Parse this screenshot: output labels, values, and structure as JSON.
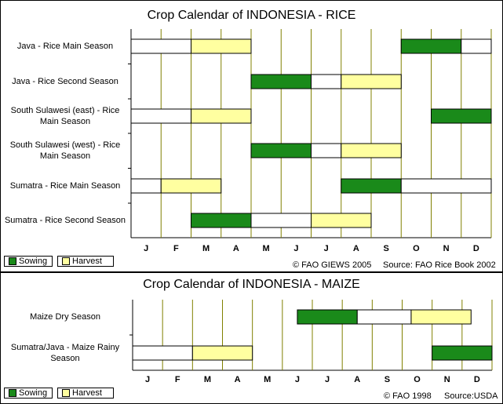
{
  "colors": {
    "sowing": "#1a8a1a",
    "harvest": "#ffffa0",
    "growing": "#ffffff",
    "gridline": "#808000"
  },
  "legend": {
    "sowing": "Sowing",
    "harvest": "Harvest"
  },
  "chart_data": [
    {
      "type": "table",
      "title": "Crop Calendar of INDONESIA - RICE",
      "months": [
        "J",
        "F",
        "M",
        "A",
        "M",
        "J",
        "J",
        "A",
        "S",
        "O",
        "N",
        "D"
      ],
      "source_left": "© FAO GIEWS 2005",
      "source_right": "Source: FAO Rice Book 2002",
      "rows": [
        {
          "label": "Java - Rice Main Season",
          "segments": [
            {
              "start": 0,
              "end": 2,
              "phase": "growing"
            },
            {
              "start": 2,
              "end": 4,
              "phase": "harvest"
            },
            {
              "start": 9,
              "end": 11,
              "phase": "sowing"
            },
            {
              "start": 11,
              "end": 12,
              "phase": "growing"
            }
          ]
        },
        {
          "label": "Java - Rice Second Season",
          "segments": [
            {
              "start": 4,
              "end": 6,
              "phase": "sowing"
            },
            {
              "start": 6,
              "end": 7,
              "phase": "growing"
            },
            {
              "start": 7,
              "end": 9,
              "phase": "harvest"
            }
          ]
        },
        {
          "label": "South Sulawesi (east) - Rice Main Season",
          "segments": [
            {
              "start": 0,
              "end": 2,
              "phase": "growing"
            },
            {
              "start": 2,
              "end": 4,
              "phase": "harvest"
            },
            {
              "start": 10,
              "end": 12,
              "phase": "sowing"
            }
          ]
        },
        {
          "label": "South Sulawesi (west) - Rice Main Season",
          "segments": [
            {
              "start": 4,
              "end": 6,
              "phase": "sowing"
            },
            {
              "start": 6,
              "end": 7,
              "phase": "growing"
            },
            {
              "start": 7,
              "end": 9,
              "phase": "harvest"
            }
          ]
        },
        {
          "label": "Sumatra - Rice Main Season",
          "segments": [
            {
              "start": 0,
              "end": 1,
              "phase": "growing"
            },
            {
              "start": 1,
              "end": 3,
              "phase": "harvest"
            },
            {
              "start": 7,
              "end": 9,
              "phase": "sowing"
            },
            {
              "start": 9,
              "end": 12,
              "phase": "growing"
            }
          ]
        },
        {
          "label": "Sumatra - Rice Second Season",
          "segments": [
            {
              "start": 2,
              "end": 4,
              "phase": "sowing"
            },
            {
              "start": 4,
              "end": 6,
              "phase": "growing"
            },
            {
              "start": 6,
              "end": 8,
              "phase": "harvest"
            }
          ]
        }
      ]
    },
    {
      "type": "table",
      "title": "Crop Calendar of INDONESIA - MAIZE",
      "months": [
        "J",
        "F",
        "M",
        "A",
        "M",
        "J",
        "J",
        "A",
        "S",
        "O",
        "N",
        "D"
      ],
      "source_left": "© FAO 1998",
      "source_right": "Source:USDA",
      "rows": [
        {
          "label": "Maize Dry Season",
          "segments": [
            {
              "start": 5.5,
              "end": 7.5,
              "phase": "sowing"
            },
            {
              "start": 7.5,
              "end": 9.3,
              "phase": "growing"
            },
            {
              "start": 9.3,
              "end": 11.3,
              "phase": "harvest"
            }
          ]
        },
        {
          "label": "Sumatra/Java - Maize Rainy Season",
          "segments": [
            {
              "start": 0,
              "end": 2,
              "phase": "growing"
            },
            {
              "start": 2,
              "end": 4,
              "phase": "harvest"
            },
            {
              "start": 10,
              "end": 12,
              "phase": "sowing"
            }
          ]
        }
      ]
    }
  ]
}
